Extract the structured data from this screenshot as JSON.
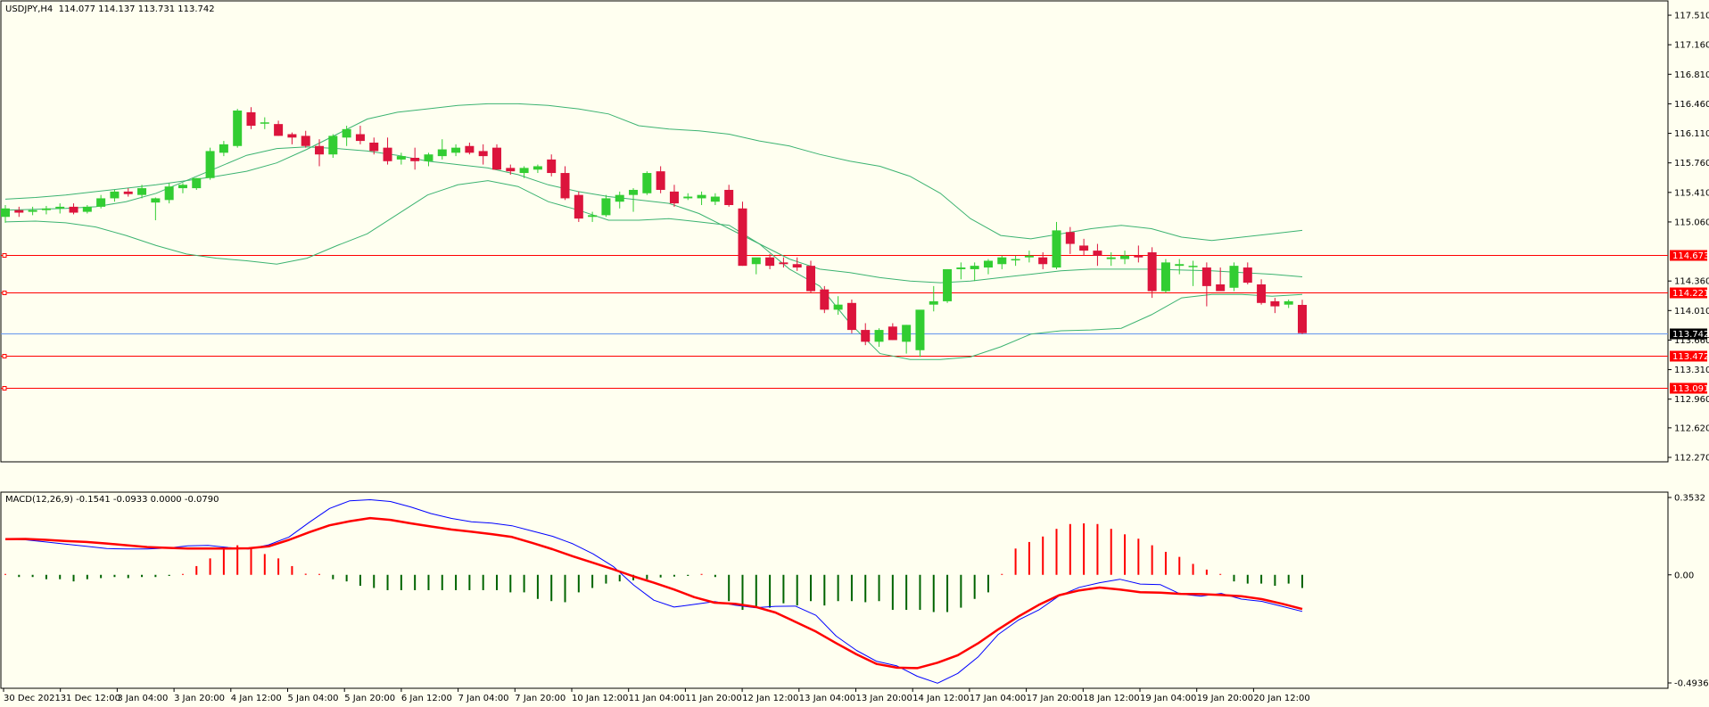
{
  "window": {
    "symbol_info": "USDJPY,H4  114.077 114.137 113.731 113.742",
    "indicator_info": "MACD(12,26,9) -0.1541 -0.0933 0.0000 -0.0790"
  },
  "colors": {
    "background": "#fffff0",
    "bull_candle": "#32cd32",
    "bear_candle": "#dc143c",
    "bollinger": "#3cb371",
    "horizontal_lines": "#ff0000",
    "bid_line": "#6495ed",
    "macd_line": "#0000ff",
    "signal_line": "#ff0000",
    "hist_positive": "#ff0000",
    "hist_negative": "#006400"
  },
  "chart_data": [
    {
      "type": "candlestick",
      "title": "USDJPY,H4",
      "ylim": [
        112.27,
        117.5
      ],
      "yticks": [
        "117.510",
        "117.160",
        "116.810",
        "116.460",
        "116.110",
        "115.760",
        "115.410",
        "115.060",
        "114.360",
        "114.010",
        "113.660",
        "113.310",
        "112.960",
        "112.620",
        "112.270"
      ],
      "xticks": [
        "30 Dec 2021",
        "31 Dec 12:00",
        "3 Jan 04:00",
        "3 Jan 20:00",
        "4 Jan 12:00",
        "5 Jan 04:00",
        "5 Jan 20:00",
        "6 Jan 12:00",
        "7 Jan 04:00",
        "7 Jan 20:00",
        "10 Jan 12:00",
        "11 Jan 04:00",
        "11 Jan 20:00",
        "12 Jan 12:00",
        "13 Jan 04:00",
        "13 Jan 20:00",
        "14 Jan 12:00",
        "17 Jan 04:00",
        "17 Jan 20:00",
        "18 Jan 12:00",
        "19 Jan 04:00",
        "19 Jan 20:00",
        "20 Jan 12:00"
      ],
      "horizontal_levels": [
        {
          "label": "114.673",
          "value": 114.673,
          "color": "#ff0000"
        },
        {
          "label": "114.221",
          "value": 114.221,
          "color": "#ff0000"
        },
        {
          "label": "113.472",
          "value": 113.472,
          "color": "#ff0000"
        },
        {
          "label": "113.091",
          "value": 113.091,
          "color": "#ff0000"
        }
      ],
      "current_price": {
        "label": "113.742",
        "value": 113.742
      },
      "candles": [
        [
          115.12,
          115.26,
          115.05,
          115.22
        ],
        [
          115.2,
          115.24,
          115.12,
          115.17
        ],
        [
          115.18,
          115.24,
          115.14,
          115.2
        ],
        [
          115.2,
          115.25,
          115.15,
          115.22
        ],
        [
          115.22,
          115.28,
          115.16,
          115.24
        ],
        [
          115.24,
          115.28,
          115.15,
          115.17
        ],
        [
          115.18,
          115.26,
          115.16,
          115.24
        ],
        [
          115.24,
          115.38,
          115.22,
          115.34
        ],
        [
          115.34,
          115.44,
          115.3,
          115.42
        ],
        [
          115.42,
          115.46,
          115.36,
          115.39
        ],
        [
          115.38,
          115.5,
          115.34,
          115.46
        ],
        [
          115.29,
          115.35,
          115.08,
          115.34
        ],
        [
          115.32,
          115.52,
          115.28,
          115.48
        ],
        [
          115.46,
          115.52,
          115.4,
          115.5
        ],
        [
          115.46,
          115.58,
          115.44,
          115.58
        ],
        [
          115.58,
          115.94,
          115.56,
          115.9
        ],
        [
          115.88,
          116.02,
          115.84,
          115.98
        ],
        [
          115.96,
          116.4,
          115.94,
          116.38
        ],
        [
          116.36,
          116.42,
          116.16,
          116.2
        ],
        [
          116.24,
          116.3,
          116.16,
          116.24
        ],
        [
          116.22,
          116.26,
          116.08,
          116.08
        ],
        [
          116.1,
          116.12,
          115.98,
          116.06
        ],
        [
          116.08,
          116.14,
          115.94,
          115.96
        ],
        [
          115.96,
          116.04,
          115.72,
          115.86
        ],
        [
          115.86,
          116.1,
          115.82,
          116.08
        ],
        [
          116.06,
          116.2,
          115.96,
          116.16
        ],
        [
          116.1,
          116.2,
          115.98,
          116.02
        ],
        [
          116.0,
          116.06,
          115.86,
          115.9
        ],
        [
          115.94,
          116.06,
          115.74,
          115.78
        ],
        [
          115.8,
          115.88,
          115.74,
          115.84
        ],
        [
          115.82,
          115.94,
          115.68,
          115.78
        ],
        [
          115.78,
          115.88,
          115.72,
          115.86
        ],
        [
          115.84,
          116.04,
          115.8,
          115.92
        ],
        [
          115.88,
          115.98,
          115.84,
          115.94
        ],
        [
          115.96,
          116.0,
          115.86,
          115.88
        ],
        [
          115.9,
          115.98,
          115.74,
          115.84
        ],
        [
          115.94,
          115.98,
          115.68,
          115.68
        ],
        [
          115.7,
          115.74,
          115.62,
          115.66
        ],
        [
          115.64,
          115.72,
          115.58,
          115.7
        ],
        [
          115.68,
          115.74,
          115.64,
          115.72
        ],
        [
          115.8,
          115.86,
          115.6,
          115.64
        ],
        [
          115.64,
          115.72,
          115.32,
          115.34
        ],
        [
          115.38,
          115.42,
          115.06,
          115.1
        ],
        [
          115.12,
          115.18,
          115.06,
          115.14
        ],
        [
          115.14,
          115.38,
          115.12,
          115.34
        ],
        [
          115.3,
          115.42,
          115.22,
          115.38
        ],
        [
          115.38,
          115.46,
          115.18,
          115.44
        ],
        [
          115.4,
          115.66,
          115.38,
          115.64
        ],
        [
          115.66,
          115.72,
          115.4,
          115.44
        ],
        [
          115.42,
          115.5,
          115.24,
          115.28
        ],
        [
          115.34,
          115.4,
          115.32,
          115.36
        ],
        [
          115.34,
          115.42,
          115.26,
          115.38
        ],
        [
          115.3,
          115.4,
          115.26,
          115.36
        ],
        [
          115.44,
          115.5,
          115.24,
          115.26
        ],
        [
          115.22,
          115.3,
          114.54,
          114.54
        ],
        [
          114.56,
          114.62,
          114.44,
          114.64
        ],
        [
          114.64,
          114.68,
          114.5,
          114.54
        ],
        [
          114.58,
          114.64,
          114.52,
          114.56
        ],
        [
          114.56,
          114.64,
          114.48,
          114.52
        ],
        [
          114.54,
          114.6,
          114.22,
          114.24
        ],
        [
          114.26,
          114.3,
          113.98,
          114.02
        ],
        [
          114.02,
          114.18,
          113.96,
          114.08
        ],
        [
          114.1,
          114.14,
          113.74,
          113.78
        ],
        [
          113.78,
          113.86,
          113.6,
          113.64
        ],
        [
          113.64,
          113.8,
          113.58,
          113.78
        ],
        [
          113.82,
          113.86,
          113.66,
          113.66
        ],
        [
          113.64,
          113.84,
          113.5,
          113.84
        ],
        [
          113.54,
          114.0,
          113.46,
          114.02
        ],
        [
          114.08,
          114.3,
          114.0,
          114.12
        ],
        [
          114.12,
          114.5,
          114.1,
          114.5
        ],
        [
          114.5,
          114.58,
          114.38,
          114.52
        ],
        [
          114.5,
          114.58,
          114.36,
          114.54
        ],
        [
          114.52,
          114.62,
          114.44,
          114.6
        ],
        [
          114.56,
          114.66,
          114.5,
          114.64
        ],
        [
          114.62,
          114.66,
          114.54,
          114.62
        ],
        [
          114.64,
          114.72,
          114.58,
          114.66
        ],
        [
          114.64,
          114.7,
          114.5,
          114.56
        ],
        [
          114.52,
          115.06,
          114.5,
          114.96
        ],
        [
          114.94,
          115.0,
          114.68,
          114.8
        ],
        [
          114.78,
          114.86,
          114.66,
          114.72
        ],
        [
          114.72,
          114.8,
          114.54,
          114.66
        ],
        [
          114.62,
          114.7,
          114.54,
          114.64
        ],
        [
          114.62,
          114.72,
          114.56,
          114.66
        ],
        [
          114.66,
          114.78,
          114.58,
          114.64
        ],
        [
          114.7,
          114.76,
          114.16,
          114.24
        ],
        [
          114.24,
          114.62,
          114.22,
          114.58
        ],
        [
          114.54,
          114.62,
          114.44,
          114.56
        ],
        [
          114.54,
          114.6,
          114.3,
          114.54
        ],
        [
          114.52,
          114.58,
          114.06,
          114.3
        ],
        [
          114.32,
          114.52,
          114.26,
          114.24
        ],
        [
          114.28,
          114.58,
          114.24,
          114.54
        ],
        [
          114.52,
          114.58,
          114.32,
          114.34
        ],
        [
          114.32,
          114.38,
          114.08,
          114.1
        ],
        [
          114.12,
          114.16,
          113.98,
          114.06
        ],
        [
          114.08,
          114.14,
          114.04,
          114.12
        ],
        [
          114.077,
          114.137,
          113.731,
          113.742
        ]
      ],
      "bollinger_bands": {
        "upper": [
          115.33,
          115.35,
          115.38,
          115.42,
          115.46,
          115.5,
          115.55,
          115.6,
          115.66,
          115.76,
          115.92,
          116.1,
          116.28,
          116.36,
          116.4,
          116.44,
          116.46,
          116.46,
          116.44,
          116.4,
          116.34,
          116.2,
          116.16,
          116.14,
          116.1,
          116.02,
          115.96,
          115.86,
          115.78,
          115.72,
          115.6,
          115.4,
          115.1,
          114.9,
          114.86,
          114.92,
          114.98,
          115.02,
          114.98,
          114.88,
          114.84,
          114.88,
          114.92,
          114.96
        ],
        "middle": [
          115.2,
          115.21,
          115.22,
          115.24,
          115.3,
          115.4,
          115.55,
          115.7,
          115.85,
          115.93,
          115.95,
          115.93,
          115.9,
          115.85,
          115.78,
          115.74,
          115.7,
          115.62,
          115.5,
          115.42,
          115.36,
          115.32,
          115.28,
          115.16,
          114.98,
          114.8,
          114.62,
          114.5,
          114.46,
          114.4,
          114.36,
          114.34,
          114.36,
          114.4,
          114.44,
          114.48,
          114.5,
          114.5,
          114.5,
          114.49,
          114.48,
          114.46,
          114.44,
          114.41
        ],
        "lower": [
          115.06,
          115.07,
          115.05,
          115.0,
          114.9,
          114.78,
          114.68,
          114.63,
          114.6,
          114.56,
          114.63,
          114.78,
          114.92,
          115.15,
          115.38,
          115.5,
          115.55,
          115.48,
          115.3,
          115.2,
          115.08,
          115.08,
          115.1,
          115.06,
          115.02,
          114.8,
          114.5,
          114.3,
          113.86,
          113.5,
          113.43,
          113.43,
          113.46,
          113.58,
          113.73,
          113.77,
          113.78,
          113.8,
          113.96,
          114.16,
          114.2,
          114.2,
          114.18,
          114.2
        ]
      }
    },
    {
      "type": "macd",
      "title": "MACD(12,26,9)",
      "params": [
        12,
        26,
        9
      ],
      "values_shown": [
        -0.1541,
        -0.0933,
        0.0,
        -0.079
      ],
      "ylim": [
        -0.4936,
        0.3532
      ],
      "yticks": [
        "0.3532",
        "0.00",
        "-0.4936"
      ],
      "macd_line": [
        0.165,
        0.16,
        0.15,
        0.14,
        0.13,
        0.12,
        0.118,
        0.118,
        0.122,
        0.132,
        0.134,
        0.125,
        0.118,
        0.137,
        0.173,
        0.24,
        0.303,
        0.338,
        0.343,
        0.335,
        0.31,
        0.28,
        0.258,
        0.242,
        0.236,
        0.224,
        0.2,
        0.176,
        0.142,
        0.096,
        0.038,
        -0.046,
        -0.116,
        -0.147,
        -0.135,
        -0.122,
        -0.138,
        -0.15,
        -0.144,
        -0.143,
        -0.185,
        -0.28,
        -0.345,
        -0.395,
        -0.416,
        -0.463,
        -0.495,
        -0.45,
        -0.375,
        -0.272,
        -0.206,
        -0.16,
        -0.096,
        -0.057,
        -0.036,
        -0.02,
        -0.042,
        -0.045,
        -0.088,
        -0.097,
        -0.085,
        -0.111,
        -0.121,
        -0.144,
        -0.167
      ],
      "signal_line": [
        0.163,
        0.164,
        0.16,
        0.154,
        0.15,
        0.143,
        0.135,
        0.127,
        0.123,
        0.12,
        0.12,
        0.12,
        0.121,
        0.13,
        0.16,
        0.195,
        0.226,
        0.245,
        0.259,
        0.251,
        0.235,
        0.221,
        0.207,
        0.197,
        0.186,
        0.173,
        0.146,
        0.117,
        0.085,
        0.055,
        0.025,
        -0.007,
        -0.036,
        -0.067,
        -0.102,
        -0.127,
        -0.132,
        -0.146,
        -0.172,
        -0.215,
        -0.259,
        -0.312,
        -0.363,
        -0.407,
        -0.424,
        -0.426,
        -0.401,
        -0.367,
        -0.313,
        -0.249,
        -0.19,
        -0.137,
        -0.093,
        -0.071,
        -0.058,
        -0.067,
        -0.079,
        -0.081,
        -0.087,
        -0.088,
        -0.092,
        -0.098,
        -0.111,
        -0.132,
        -0.156
      ],
      "histogram": [
        0.0,
        -0.01,
        -0.01,
        -0.02,
        -0.02,
        -0.03,
        -0.02,
        -0.015,
        -0.01,
        -0.015,
        -0.01,
        -0.01,
        -0.005,
        0.0,
        0.04,
        0.075,
        0.115,
        0.135,
        0.125,
        0.095,
        0.075,
        0.04,
        0.005,
        0.0,
        -0.02,
        -0.03,
        -0.05,
        -0.06,
        -0.07,
        -0.07,
        -0.07,
        -0.07,
        -0.07,
        -0.07,
        -0.07,
        -0.07,
        -0.07,
        -0.08,
        -0.08,
        -0.11,
        -0.12,
        -0.125,
        -0.08,
        -0.06,
        -0.04,
        -0.03,
        -0.025,
        -0.02,
        -0.012,
        -0.008,
        -0.005,
        0.0,
        -0.01,
        -0.12,
        -0.16,
        -0.15,
        -0.15,
        -0.13,
        -0.14,
        -0.12,
        -0.14,
        -0.12,
        -0.12,
        -0.125,
        -0.12,
        -0.16,
        -0.16,
        -0.16,
        -0.17,
        -0.17,
        -0.15,
        -0.11,
        -0.08,
        0.0,
        0.12,
        0.15,
        0.175,
        0.21,
        0.232,
        0.235,
        0.232,
        0.21,
        0.185,
        0.165,
        0.135,
        0.105,
        0.082,
        0.05,
        0.024,
        0.0,
        -0.03,
        -0.04,
        -0.04,
        -0.05,
        -0.04,
        -0.06
      ]
    }
  ]
}
